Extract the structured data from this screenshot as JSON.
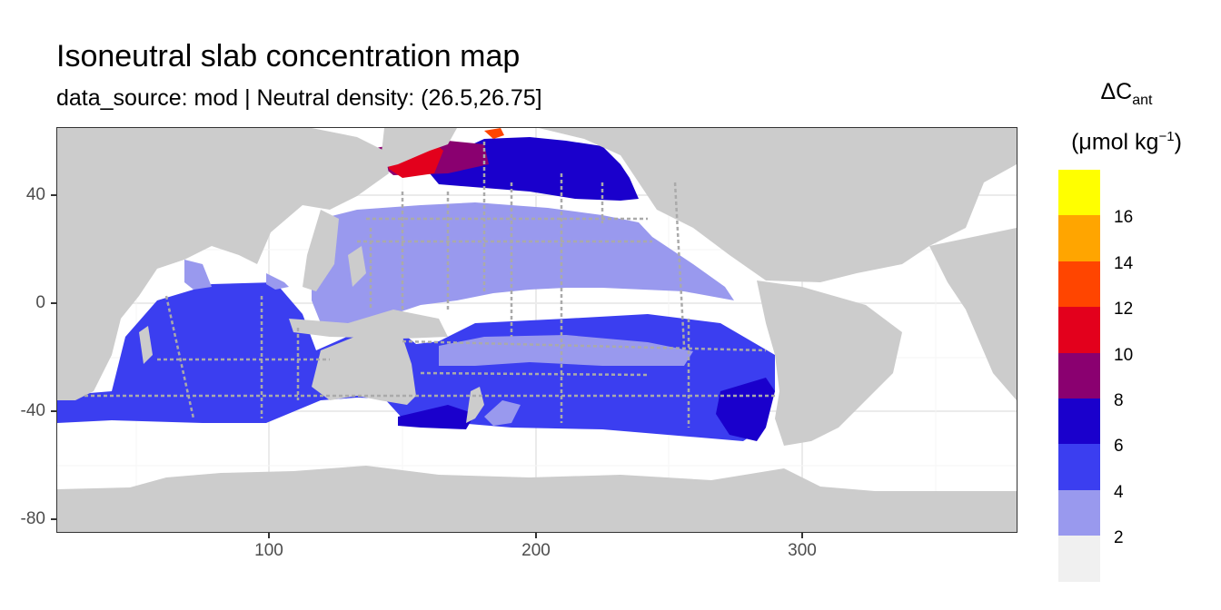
{
  "title": "Isoneutral slab concentration map",
  "subtitle": "data_source: mod | Neutral density: (26.5,26.75]",
  "map": {
    "x_ticks": [
      "100",
      "200",
      "300"
    ],
    "y_ticks": [
      "40",
      "0",
      "-40",
      "-80"
    ],
    "x_range": [
      20,
      380
    ],
    "y_range": [
      -85,
      65
    ],
    "land_color": "#cccccc",
    "ocean_no_data_color": "#ffffff",
    "track_color": "#aaaaaa",
    "regions": [
      {
        "name": "North Pacific subtropical gyre",
        "bin": "2-4"
      },
      {
        "name": "Indian Ocean / South Pacific",
        "bin": "4-6"
      },
      {
        "name": "Subpolar North Pacific",
        "bin": "6-8"
      },
      {
        "name": "Northwest Pacific (Kuroshio extension)",
        "bin": "8-10 to 12-14"
      },
      {
        "name": "Southern Ocean",
        "bin": "no data"
      }
    ]
  },
  "legend": {
    "title_main": "ΔC",
    "title_sub": "ant",
    "unit_main": "(μmol kg",
    "unit_sup": "−1",
    "unit_close": ")",
    "labels": [
      "16",
      "14",
      "12",
      "10",
      "8",
      "6",
      "4",
      "2"
    ],
    "bins": [
      {
        "range": "16+",
        "color": "#ffff00"
      },
      {
        "range": "14-16",
        "color": "#ffa500"
      },
      {
        "range": "12-14",
        "color": "#ff4500"
      },
      {
        "range": "10-12",
        "color": "#e3001c"
      },
      {
        "range": "8-10",
        "color": "#8a0070"
      },
      {
        "range": "6-8",
        "color": "#1a00cc"
      },
      {
        "range": "4-6",
        "color": "#3b3ef0"
      },
      {
        "range": "2-4",
        "color": "#9999ee"
      },
      {
        "range": "0-2",
        "color": "#f0f0f0"
      }
    ]
  }
}
